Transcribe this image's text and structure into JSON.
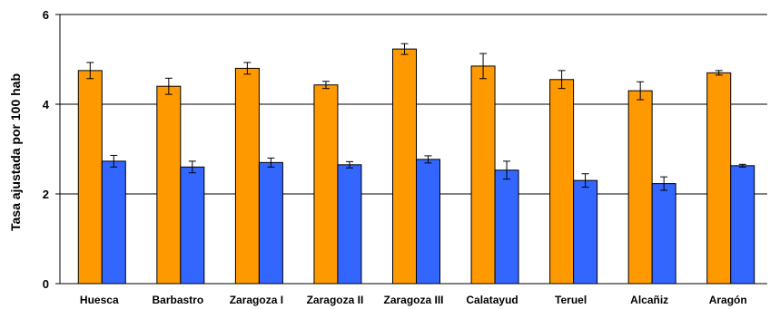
{
  "chart_data": {
    "type": "bar",
    "title": "",
    "xlabel": "",
    "ylabel": "Tasa ajustada por 100 hab",
    "ylim": [
      0,
      6
    ],
    "yticks": [
      0,
      2,
      4,
      6
    ],
    "grid": true,
    "legend": "none",
    "categories": [
      "Huesca",
      "Barbastro",
      "Zaragoza I",
      "Zaragoza II",
      "Zaragoza III",
      "Calatayud",
      "Teruel",
      "Alcañiz",
      "Aragón"
    ],
    "series": [
      {
        "color": "#FF9900",
        "values": [
          4.75,
          4.4,
          4.8,
          4.43,
          5.23,
          4.85,
          4.55,
          4.3,
          4.7
        ],
        "errors": [
          0.18,
          0.18,
          0.13,
          0.08,
          0.12,
          0.28,
          0.2,
          0.2,
          0.05
        ]
      },
      {
        "color": "#3366FF",
        "values": [
          2.73,
          2.6,
          2.7,
          2.65,
          2.77,
          2.53,
          2.3,
          2.23,
          2.63
        ],
        "errors": [
          0.13,
          0.13,
          0.1,
          0.07,
          0.08,
          0.2,
          0.15,
          0.15,
          0.03
        ]
      }
    ]
  }
}
